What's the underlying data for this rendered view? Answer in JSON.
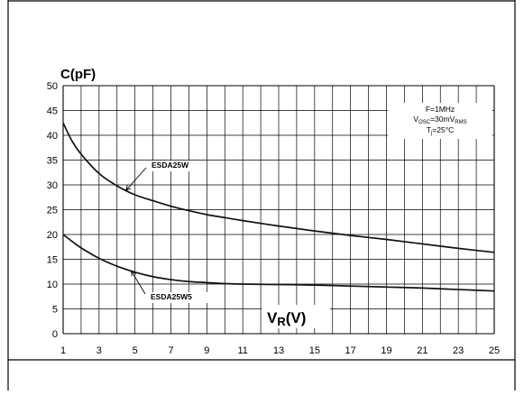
{
  "chart_data": {
    "type": "line",
    "ylabel": "C(pF)",
    "xlabel_main": "V",
    "xlabel_sub": "R",
    "xlabel_unit": "(V)",
    "xlim": [
      1,
      25
    ],
    "ylim": [
      0,
      50
    ],
    "xticks": [
      1,
      3,
      5,
      7,
      9,
      11,
      13,
      15,
      17,
      19,
      21,
      23,
      25
    ],
    "yticks": [
      0,
      5,
      10,
      15,
      20,
      25,
      30,
      35,
      40,
      45,
      50
    ],
    "grid": true,
    "conditions": [
      {
        "main": "F=1MHz",
        "sub": "",
        "tail": ""
      },
      {
        "main": "V",
        "sub": "OSC",
        "tail": "=30mV",
        "sub2": "RMS"
      },
      {
        "main": "T",
        "sub": "j",
        "tail": "=25°C"
      }
    ],
    "series": [
      {
        "name": "ESDA25W",
        "x": [
          1,
          1.5,
          2,
          3,
          4,
          5,
          6,
          7,
          8,
          9,
          10,
          11,
          13,
          15,
          17,
          19,
          21,
          23,
          25
        ],
        "values": [
          42.5,
          38.8,
          36.2,
          32.3,
          29.8,
          28.0,
          26.8,
          25.7,
          24.8,
          24.0,
          23.4,
          22.8,
          21.7,
          20.7,
          19.8,
          19.0,
          18.1,
          17.2,
          16.4
        ]
      },
      {
        "name": "ESDA25W5",
        "x": [
          1,
          1.5,
          2,
          3,
          4,
          5,
          6,
          7,
          8,
          9,
          10,
          11,
          13,
          15,
          17,
          19,
          21,
          23,
          25
        ],
        "values": [
          20.0,
          18.6,
          17.3,
          15.2,
          13.6,
          12.4,
          11.5,
          10.9,
          10.5,
          10.3,
          10.1,
          10.0,
          9.9,
          9.8,
          9.6,
          9.4,
          9.2,
          8.9,
          8.6
        ]
      }
    ],
    "annotations": [
      {
        "series": 0,
        "text": "ESDA25W",
        "arrow_to_x": 4.5
      },
      {
        "series": 1,
        "text": "ESDA25W5",
        "arrow_to_x": 4.8
      }
    ]
  }
}
